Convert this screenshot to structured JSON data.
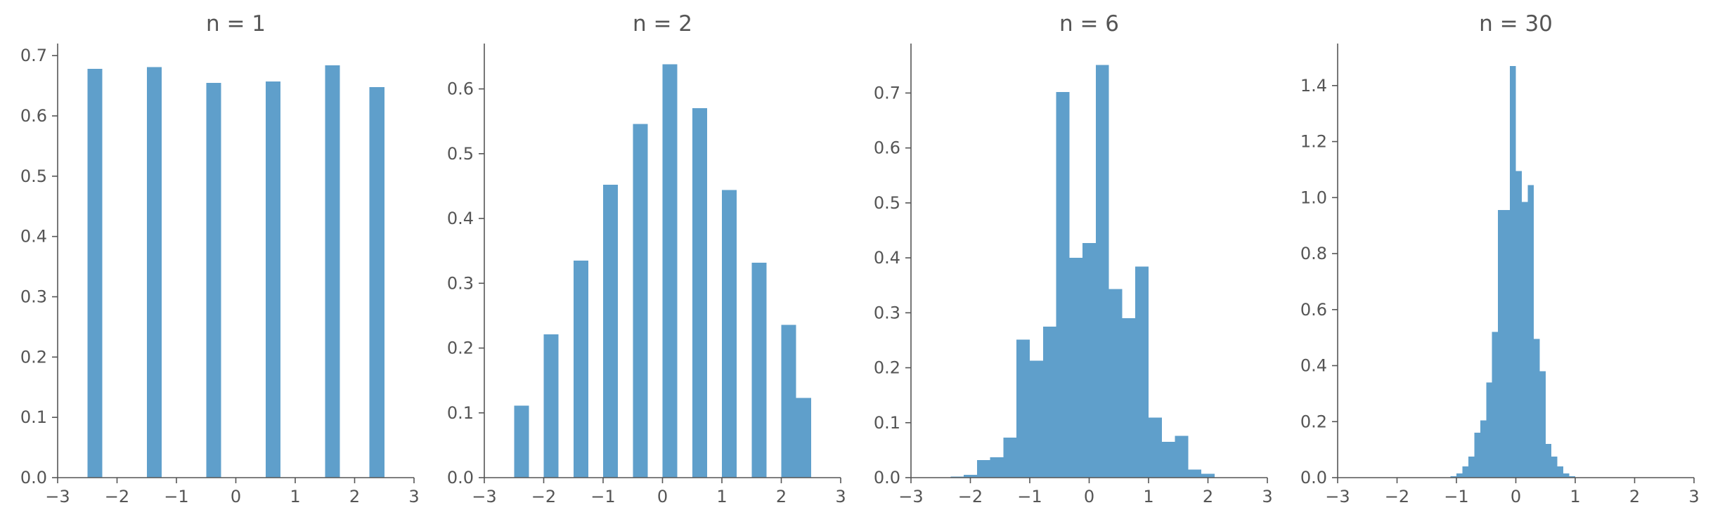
{
  "colors": {
    "bar": "#5f9fcb",
    "axis": "#555555",
    "text": "#555555",
    "background": "#ffffff"
  },
  "chart_data": [
    {
      "type": "bar",
      "title": "n = 1",
      "xlabel": "",
      "ylabel": "",
      "xlim": [
        -3,
        3
      ],
      "ylim": [
        0,
        0.72
      ],
      "grid": false,
      "xticks": [
        -3,
        -2,
        -1,
        0,
        1,
        2,
        3
      ],
      "xtick_labels": [
        "−3",
        "−2",
        "−1",
        "0",
        "1",
        "2",
        "3"
      ],
      "yticks": [
        0,
        0.1,
        0.2,
        0.3,
        0.4,
        0.5,
        0.6,
        0.7
      ],
      "ytick_labels": [
        "0.0",
        "0.1",
        "0.2",
        "0.3",
        "0.4",
        "0.5",
        "0.6",
        "0.7"
      ],
      "bin_width": 0.25,
      "bins": [
        {
          "x0": -2.5,
          "x1": -2.25,
          "value": 0.678
        },
        {
          "x0": -1.5,
          "x1": -1.25,
          "value": 0.681
        },
        {
          "x0": -0.5,
          "x1": -0.25,
          "value": 0.655
        },
        {
          "x0": 0.5,
          "x1": 0.75,
          "value": 0.657
        },
        {
          "x0": 1.5,
          "x1": 1.75,
          "value": 0.684
        },
        {
          "x0": 2.25,
          "x1": 2.5,
          "value": 0.648
        }
      ]
    },
    {
      "type": "bar",
      "title": "n = 2",
      "xlabel": "",
      "ylabel": "",
      "xlim": [
        -3,
        3
      ],
      "ylim": [
        0,
        0.67
      ],
      "grid": false,
      "xticks": [
        -3,
        -2,
        -1,
        0,
        1,
        2,
        3
      ],
      "xtick_labels": [
        "−3",
        "−2",
        "−1",
        "0",
        "1",
        "2",
        "3"
      ],
      "yticks": [
        0,
        0.1,
        0.2,
        0.3,
        0.4,
        0.5,
        0.6
      ],
      "ytick_labels": [
        "0.0",
        "0.1",
        "0.2",
        "0.3",
        "0.4",
        "0.5",
        "0.6"
      ],
      "bin_width": 0.25,
      "bins": [
        {
          "x0": -2.5,
          "x1": -2.25,
          "value": 0.111
        },
        {
          "x0": -2.0,
          "x1": -1.75,
          "value": 0.221
        },
        {
          "x0": -1.5,
          "x1": -1.25,
          "value": 0.335
        },
        {
          "x0": -1.0,
          "x1": -0.75,
          "value": 0.452
        },
        {
          "x0": -0.5,
          "x1": -0.25,
          "value": 0.546
        },
        {
          "x0": 0.0,
          "x1": 0.25,
          "value": 0.638
        },
        {
          "x0": 0.5,
          "x1": 0.75,
          "value": 0.57
        },
        {
          "x0": 1.0,
          "x1": 1.25,
          "value": 0.444
        },
        {
          "x0": 1.5,
          "x1": 1.75,
          "value": 0.332
        },
        {
          "x0": 2.0,
          "x1": 2.25,
          "value": 0.236
        },
        {
          "x0": 2.25,
          "x1": 2.5,
          "value": 0.123
        }
      ]
    },
    {
      "type": "bar",
      "title": "n = 6",
      "xlabel": "",
      "ylabel": "",
      "xlim": [
        -3,
        3
      ],
      "ylim": [
        0,
        0.79
      ],
      "grid": false,
      "xticks": [
        -3,
        -2,
        -1,
        0,
        1,
        2,
        3
      ],
      "xtick_labels": [
        "−3",
        "−2",
        "−1",
        "0",
        "1",
        "2",
        "3"
      ],
      "yticks": [
        0,
        0.1,
        0.2,
        0.3,
        0.4,
        0.5,
        0.6,
        0.7
      ],
      "ytick_labels": [
        "0.0",
        "0.1",
        "0.2",
        "0.3",
        "0.4",
        "0.5",
        "0.6",
        "0.7"
      ],
      "bin_width": 0.222,
      "bins": [
        {
          "x0": -2.333,
          "x1": -2.111,
          "value": 0.002
        },
        {
          "x0": -2.111,
          "x1": -1.889,
          "value": 0.005
        },
        {
          "x0": -1.889,
          "x1": -1.667,
          "value": 0.032
        },
        {
          "x0": -1.667,
          "x1": -1.444,
          "value": 0.037
        },
        {
          "x0": -1.444,
          "x1": -1.222,
          "value": 0.073
        },
        {
          "x0": -1.222,
          "x1": -1.0,
          "value": 0.251
        },
        {
          "x0": -1.0,
          "x1": -0.778,
          "value": 0.213
        },
        {
          "x0": -0.778,
          "x1": -0.556,
          "value": 0.275
        },
        {
          "x0": -0.556,
          "x1": -0.333,
          "value": 0.702
        },
        {
          "x0": -0.333,
          "x1": -0.111,
          "value": 0.4
        },
        {
          "x0": -0.111,
          "x1": 0.111,
          "value": 0.427
        },
        {
          "x0": 0.111,
          "x1": 0.333,
          "value": 0.751
        },
        {
          "x0": 0.333,
          "x1": 0.556,
          "value": 0.343
        },
        {
          "x0": 0.556,
          "x1": 0.778,
          "value": 0.29
        },
        {
          "x0": 0.778,
          "x1": 1.0,
          "value": 0.384
        },
        {
          "x0": 1.0,
          "x1": 1.222,
          "value": 0.109
        },
        {
          "x0": 1.222,
          "x1": 1.444,
          "value": 0.065
        },
        {
          "x0": 1.444,
          "x1": 1.667,
          "value": 0.076
        },
        {
          "x0": 1.667,
          "x1": 1.889,
          "value": 0.015
        },
        {
          "x0": 1.889,
          "x1": 2.111,
          "value": 0.007
        }
      ]
    },
    {
      "type": "bar",
      "title": "n = 30",
      "xlabel": "",
      "ylabel": "",
      "xlim": [
        -3,
        3
      ],
      "ylim": [
        0,
        1.55
      ],
      "grid": false,
      "xticks": [
        -3,
        -2,
        -1,
        0,
        1,
        2,
        3
      ],
      "xtick_labels": [
        "−3",
        "−2",
        "−1",
        "0",
        "1",
        "2",
        "3"
      ],
      "yticks": [
        0,
        0.2,
        0.4,
        0.6,
        0.8,
        1.0,
        1.2,
        1.4
      ],
      "ytick_labels": [
        "0.0",
        "0.2",
        "0.4",
        "0.6",
        "0.8",
        "1.0",
        "1.2",
        "1.4"
      ],
      "bin_width": 0.1,
      "bins": [
        {
          "x0": -1.1,
          "x1": -1.0,
          "value": 0.005
        },
        {
          "x0": -1.0,
          "x1": -0.9,
          "value": 0.015
        },
        {
          "x0": -0.9,
          "x1": -0.8,
          "value": 0.04
        },
        {
          "x0": -0.8,
          "x1": -0.7,
          "value": 0.075
        },
        {
          "x0": -0.7,
          "x1": -0.6,
          "value": 0.16
        },
        {
          "x0": -0.6,
          "x1": -0.5,
          "value": 0.205
        },
        {
          "x0": -0.5,
          "x1": -0.4,
          "value": 0.34
        },
        {
          "x0": -0.4,
          "x1": -0.3,
          "value": 0.52
        },
        {
          "x0": -0.3,
          "x1": -0.1,
          "value": 0.955
        },
        {
          "x0": -0.1,
          "x1": 0.0,
          "value": 1.47
        },
        {
          "x0": 0.0,
          "x1": 0.1,
          "value": 1.095
        },
        {
          "x0": 0.1,
          "x1": 0.2,
          "value": 0.985
        },
        {
          "x0": 0.2,
          "x1": 0.3,
          "value": 1.045
        },
        {
          "x0": 0.3,
          "x1": 0.4,
          "value": 0.495
        },
        {
          "x0": 0.4,
          "x1": 0.5,
          "value": 0.38
        },
        {
          "x0": 0.5,
          "x1": 0.6,
          "value": 0.12
        },
        {
          "x0": 0.6,
          "x1": 0.7,
          "value": 0.075
        },
        {
          "x0": 0.7,
          "x1": 0.8,
          "value": 0.04
        },
        {
          "x0": 0.8,
          "x1": 0.9,
          "value": 0.015
        },
        {
          "x0": 0.9,
          "x1": 1.0,
          "value": 0.005
        }
      ]
    }
  ]
}
